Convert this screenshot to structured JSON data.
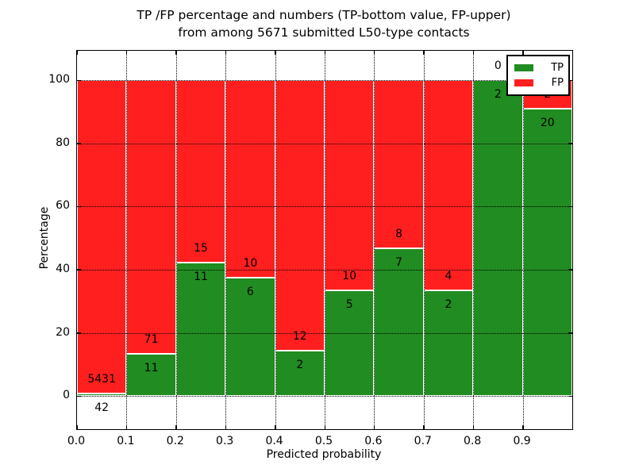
{
  "figure": {
    "title_line1": "TP /FP percentage and numbers (TP-bottom value, FP-upper)",
    "title_line2": "from among 5671 submitted L50-type contacts"
  },
  "chart_data": {
    "type": "bar",
    "stacked": true,
    "orientation": "vertical",
    "title": "TP /FP percentage and numbers (TP-bottom value, FP-upper) from among 5671 submitted L50-type contacts",
    "total_contacts": 5671,
    "xlabel": "Predicted probability",
    "ylabel": "Percentage",
    "bin_edges": [
      0.0,
      0.1,
      0.2,
      0.3,
      0.4,
      0.5,
      0.6,
      0.7,
      0.8,
      0.9,
      1.0
    ],
    "series": [
      {
        "name": "TP",
        "color": "#218c21",
        "counts": [
          42,
          11,
          11,
          6,
          2,
          5,
          7,
          2,
          2,
          20
        ],
        "percent_of_bin": [
          0.77,
          13.41,
          42.31,
          37.5,
          14.29,
          33.33,
          46.67,
          33.33,
          100.0,
          90.91
        ]
      },
      {
        "name": "FP",
        "color": "#ff1f1f",
        "counts": [
          5431,
          71,
          15,
          10,
          12,
          10,
          8,
          4,
          0,
          2
        ],
        "percent_of_bin": [
          99.23,
          86.59,
          57.69,
          62.5,
          85.71,
          66.67,
          53.33,
          66.67,
          0.0,
          9.09
        ]
      }
    ],
    "value_label_scheme": "TP count below segment boundary, FP count above segment boundary",
    "x_tick_labels": [
      "0.0",
      "0.1",
      "0.2",
      "0.3",
      "0.4",
      "0.5",
      "0.6",
      "0.7",
      "0.8",
      "0.9"
    ],
    "y_tick_values": [
      0,
      20,
      40,
      60,
      80,
      100
    ],
    "y_tick_labels": [
      "0",
      "20",
      "40",
      "60",
      "80",
      "100"
    ],
    "xlim": [
      0.0,
      1.0
    ],
    "ylim": [
      -10.5,
      109.3
    ],
    "grid": "dotted black, both axes",
    "legend_position": "upper right",
    "colors": {
      "tp_green": "#218c21",
      "fp_red": "#ff1f1f",
      "bar_edge": "#ffffff",
      "background": "#ffffff",
      "text": "#000000"
    }
  }
}
